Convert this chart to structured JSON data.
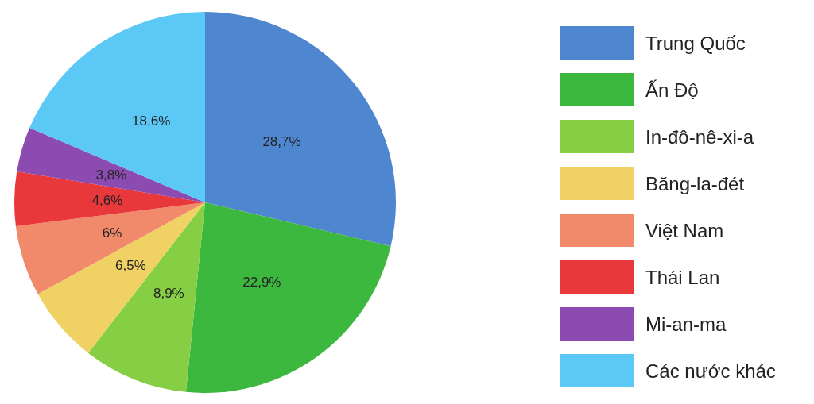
{
  "chart_data": {
    "type": "pie",
    "categories": [
      "Trung Quốc",
      "Ấn Độ",
      "In-đô-nê-xi-a",
      "Băng-la-đét",
      "Việt Nam",
      "Thái Lan",
      "Mi-an-ma",
      "Các nước khác"
    ],
    "values": [
      28.7,
      22.9,
      8.9,
      6.5,
      6,
      4.6,
      3.8,
      18.6
    ],
    "value_labels": [
      "28,7%",
      "22,9%",
      "8,9%",
      "6,5%",
      "6%",
      "4,6%",
      "3,8%",
      "18,6%"
    ],
    "colors": [
      "#4f86d0",
      "#3cb83f",
      "#86cf45",
      "#f0d264",
      "#f08a6a",
      "#e8383c",
      "#8b4bb0",
      "#5bc8f5"
    ],
    "legend": "right"
  }
}
